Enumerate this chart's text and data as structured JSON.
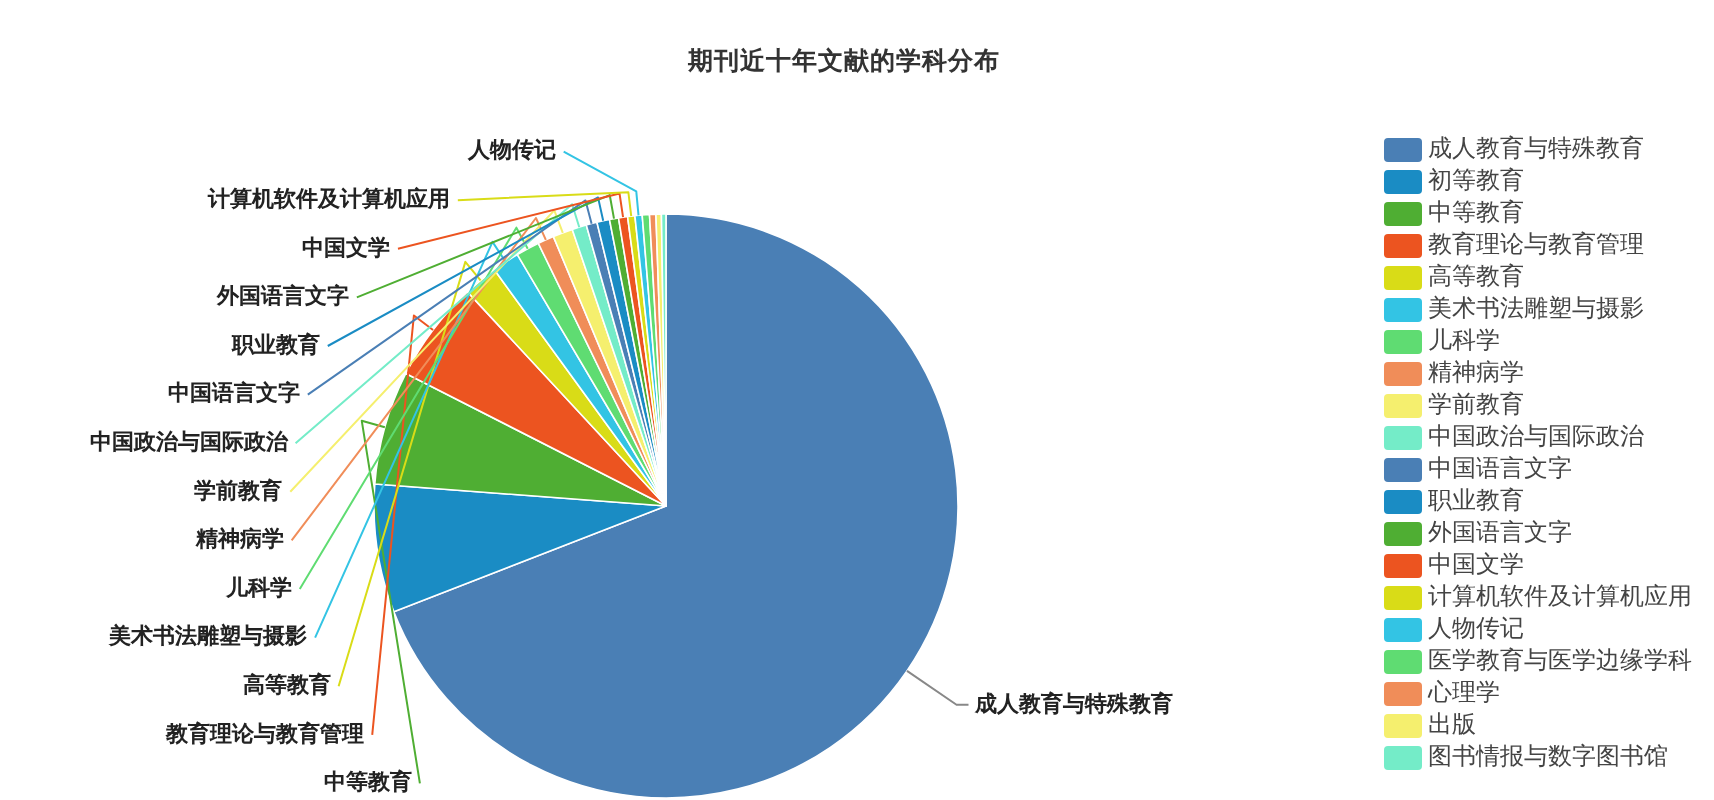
{
  "chart_data": {
    "type": "pie",
    "title": "期刊近十年文献的学科分布",
    "categories": [
      "成人教育与特殊教育",
      "初等教育",
      "中等教育",
      "教育理论与教育管理",
      "高等教育",
      "美术书法雕塑与摄影",
      "儿科学",
      "精神病学",
      "学前教育",
      "中国政治与国际政治",
      "中国语言文字",
      "职业教育",
      "外国语言文字",
      "中国文学",
      "计算机软件及计算机应用",
      "人物传记",
      "医学教育与医学边缘学科",
      "心理学",
      "出版",
      "图书情报与数字图书馆"
    ],
    "values": [
      69.1,
      7.1,
      6.3,
      5.6,
      1.9,
      1.5,
      1.3,
      0.9,
      1.1,
      0.8,
      0.6,
      0.7,
      0.5,
      0.5,
      0.4,
      0.4,
      0.4,
      0.35,
      0.3,
      0.25
    ],
    "colors": [
      "#4a7fb5",
      "#1a8cc4",
      "#4fae33",
      "#ec5420",
      "#d9dc17",
      "#33c4e4",
      "#5fdc72",
      "#f08d59",
      "#f5ef6e",
      "#74ecc8",
      "#4a7fb5",
      "#1a8cc4",
      "#4fae33",
      "#ec5420",
      "#d9dc17",
      "#33c4e4",
      "#5fdc72",
      "#f08d59",
      "#f5ef6e",
      "#74ecc8"
    ],
    "legend": "right"
  }
}
